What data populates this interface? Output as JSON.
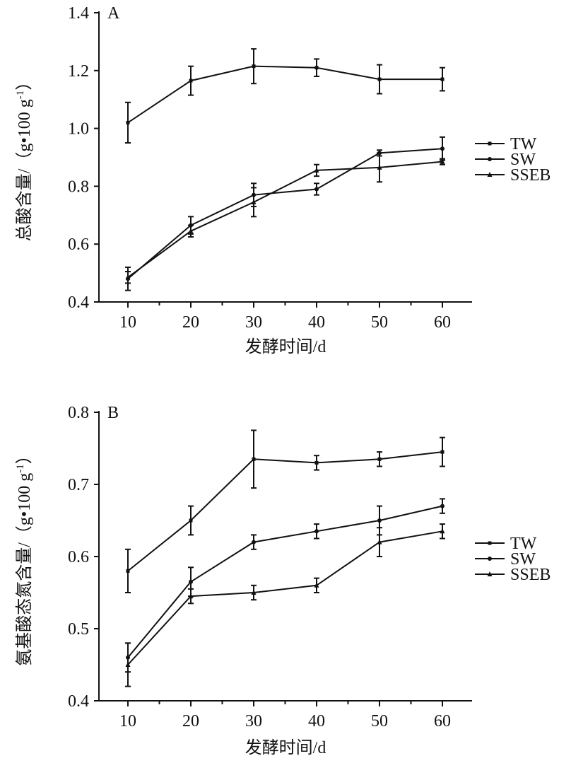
{
  "chart_data": [
    {
      "type": "line",
      "panel": "A",
      "xlabel": "发酵时间/d",
      "ylabel": "总酸含量/（g•100 g",
      "ylabel_sup": "-1",
      "ylabel_end": "）",
      "x": [
        10,
        20,
        30,
        40,
        50,
        60
      ],
      "xticks": [
        "10",
        "20",
        "30",
        "40",
        "50",
        "60"
      ],
      "xlim": [
        5,
        65
      ],
      "ylim": [
        0.4,
        1.4
      ],
      "yticks": [
        "0.4",
        "0.6",
        "0.8",
        "1.0",
        "1.2",
        "1.4"
      ],
      "legend": [
        "TW",
        "SW",
        "SSEB"
      ],
      "legend_placement": "right",
      "grid": false,
      "series": [
        {
          "name": "TW",
          "marker": "square",
          "values": [
            1.02,
            1.165,
            1.215,
            1.21,
            1.17,
            1.17
          ],
          "err": [
            0.07,
            0.05,
            0.06,
            0.03,
            0.05,
            0.04
          ]
        },
        {
          "name": "SW",
          "marker": "circle",
          "values": [
            0.48,
            0.665,
            0.77,
            0.79,
            0.915,
            0.93
          ],
          "err": [
            0.04,
            0.03,
            0.04,
            0.02,
            0.01,
            0.04
          ]
        },
        {
          "name": "SSEB",
          "marker": "triangle",
          "values": [
            0.485,
            0.645,
            0.745,
            0.855,
            0.865,
            0.885
          ],
          "err": [
            0.02,
            0.02,
            0.05,
            0.02,
            0.05,
            0.01
          ]
        }
      ]
    },
    {
      "type": "line",
      "panel": "B",
      "xlabel": "发酵时间/d",
      "ylabel": "氨基酸态氮含量/（g•100 g",
      "ylabel_sup": "-1",
      "ylabel_end": "）",
      "x": [
        10,
        20,
        30,
        40,
        50,
        60
      ],
      "xticks": [
        "10",
        "20",
        "30",
        "40",
        "50",
        "60"
      ],
      "xlim": [
        5,
        65
      ],
      "ylim": [
        0.4,
        0.8
      ],
      "yticks": [
        "0.4",
        "0.5",
        "0.6",
        "0.7",
        "0.8"
      ],
      "legend": [
        "TW",
        "SW",
        "SSEB"
      ],
      "legend_placement": "right",
      "grid": false,
      "series": [
        {
          "name": "TW",
          "marker": "square",
          "values": [
            0.58,
            0.65,
            0.735,
            0.73,
            0.735,
            0.745
          ],
          "err": [
            0.03,
            0.02,
            0.04,
            0.01,
            0.01,
            0.02
          ]
        },
        {
          "name": "SW",
          "marker": "circle",
          "values": [
            0.46,
            0.565,
            0.62,
            0.635,
            0.65,
            0.67
          ],
          "err": [
            0.02,
            0.02,
            0.01,
            0.01,
            0.02,
            0.01
          ]
        },
        {
          "name": "SSEB",
          "marker": "triangle",
          "values": [
            0.45,
            0.545,
            0.55,
            0.56,
            0.62,
            0.635
          ],
          "err": [
            0.03,
            0.01,
            0.01,
            0.01,
            0.02,
            0.01
          ]
        }
      ]
    }
  ]
}
